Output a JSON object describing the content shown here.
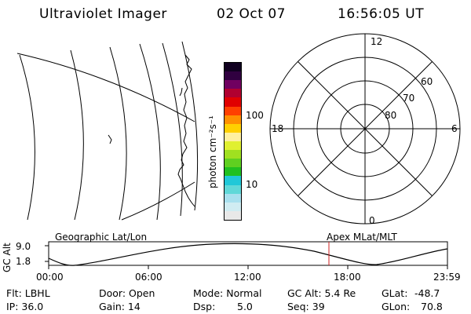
{
  "header": {
    "instrument": "Ultraviolet Imager",
    "date": "02 Oct 07",
    "time": "16:56:05 UT"
  },
  "colorbar": {
    "label": "photon cm⁻²s⁻¹",
    "ticks": [
      "100",
      "10"
    ],
    "colors": [
      "#e8e8e8",
      "#d0ecf2",
      "#a8e0ee",
      "#60d8d8",
      "#20c8d8",
      "#20c020",
      "#60d020",
      "#a0e020",
      "#e0f030",
      "#fff0a0",
      "#ffd000",
      "#ff9000",
      "#ff4000",
      "#e00000",
      "#b00030",
      "#700060",
      "#300040",
      "#100020"
    ]
  },
  "polar": {
    "labels": [
      "12",
      "18",
      "6",
      "0",
      "60",
      "70",
      "80"
    ]
  },
  "timeline": {
    "left_title": "Geographic Lat/Lon",
    "right_title": "Apex MLat/MLT",
    "yaxis_label": "GC Alt",
    "yticks": [
      "9.0",
      "1.8"
    ],
    "xticks": [
      "00:00",
      "06:00",
      "12:00",
      "18:00",
      "23:59"
    ],
    "marker_color": "#cc2020"
  },
  "footer": {
    "filter": "Flt: LBHL",
    "ip": "IP: 36.0",
    "door": "Door: Open",
    "gain": "Gain: 14",
    "mode": "Mode: Normal",
    "dsp_label": "Dsp:",
    "dsp_value": "5.0",
    "gc_alt": "GC Alt: 5.4 Re",
    "seq": "Seq: 39",
    "glat_label": "GLat:",
    "glat_value": "-48.7",
    "glon_label": "GLon:",
    "glon_value": "70.8"
  }
}
